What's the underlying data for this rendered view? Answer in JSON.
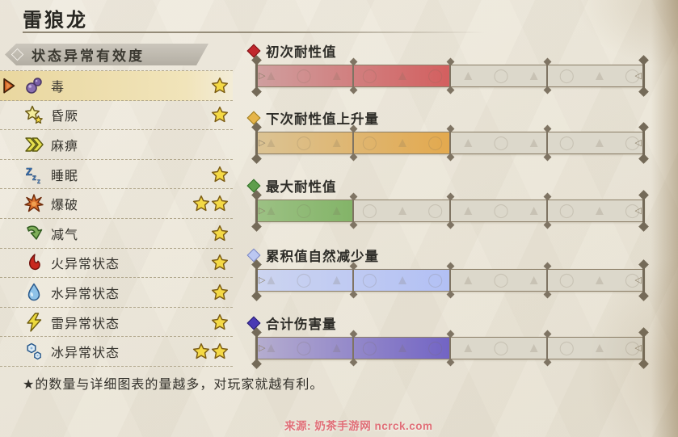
{
  "page": {
    "title": "雷狼龙",
    "footnote": "★的数量与详细图表的量越多，对玩家就越有利。",
    "watermark": "来源: 奶茶手游网 ncrck.com"
  },
  "status_list": {
    "header": "状态异常有效度",
    "items": [
      {
        "label": "毒",
        "icon": "poison-icon",
        "stars": 1,
        "selected": true
      },
      {
        "label": "昏厥",
        "icon": "stun-icon",
        "stars": 1,
        "selected": false
      },
      {
        "label": "麻痹",
        "icon": "paralysis-icon",
        "stars": 0,
        "selected": false
      },
      {
        "label": "睡眠",
        "icon": "sleep-icon",
        "stars": 1,
        "selected": false
      },
      {
        "label": "爆破",
        "icon": "blast-icon",
        "stars": 2,
        "selected": false
      },
      {
        "label": "减气",
        "icon": "exhaust-icon",
        "stars": 1,
        "selected": false
      },
      {
        "label": "火异常状态",
        "icon": "fire-icon",
        "stars": 1,
        "selected": false
      },
      {
        "label": "水异常状态",
        "icon": "water-icon",
        "stars": 1,
        "selected": false
      },
      {
        "label": "雷异常状态",
        "icon": "thunder-icon",
        "stars": 1,
        "selected": false
      },
      {
        "label": "冰异常状态",
        "icon": "ice-icon",
        "stars": 2,
        "selected": false
      }
    ]
  },
  "gauges": {
    "segments_total": 4,
    "items": [
      {
        "label": "初次耐性值",
        "filled_segments": 2,
        "legend_color": "#c1272d",
        "legend_border": "#7a1014",
        "fill_from": "#cf9f9f",
        "fill_to": "#d35f5f"
      },
      {
        "label": "下次耐性值上升量",
        "filled_segments": 2,
        "legend_color": "#e6b54a",
        "legend_border": "#9a7a1e",
        "fill_from": "#dbc394",
        "fill_to": "#e3a94e"
      },
      {
        "label": "最大耐性值",
        "filled_segments": 1,
        "legend_color": "#5e9e4c",
        "legend_border": "#2f6e26",
        "fill_from": "#9cc184",
        "fill_to": "#83b468"
      },
      {
        "label": "累积值自然减少量",
        "filled_segments": 2,
        "legend_color": "#bcc8f2",
        "legend_border": "#7a86c2",
        "fill_from": "#ccd4f0",
        "fill_to": "#b2c0f4"
      },
      {
        "label": "合计伤害量",
        "filled_segments": 2,
        "legend_color": "#4a3ab4",
        "legend_border": "#241a6e",
        "fill_from": "#b5adcf",
        "fill_to": "#7264c4"
      }
    ]
  },
  "colors": {
    "selected_row_highlight": "#eedcab",
    "star_fill": "#f4d945",
    "paper_background": "#ece7da",
    "watermark_pink": "#e0636e"
  }
}
